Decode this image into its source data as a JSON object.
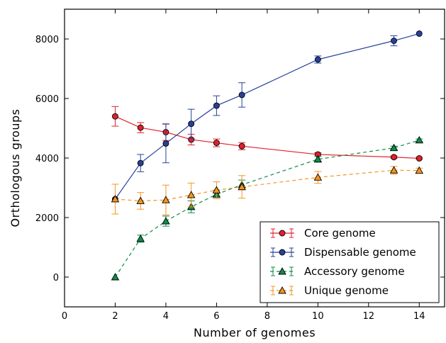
{
  "chart_data": {
    "type": "line",
    "title": "",
    "xlabel": "Number of genomes",
    "ylabel": "Orthologous groups",
    "xlim": [
      0,
      15
    ],
    "ylim": [
      -1000,
      9000
    ],
    "xticks": [
      0,
      2,
      4,
      6,
      8,
      10,
      12,
      14
    ],
    "yticks": [
      0,
      2000,
      4000,
      6000,
      8000
    ],
    "grid": false,
    "legend_position": "bottom-right",
    "series": [
      {
        "name": "Core genome",
        "color": "#e0212b",
        "marker": "circle",
        "line_style": "solid",
        "x": [
          2,
          3,
          4,
          5,
          6,
          7,
          10,
          13,
          14
        ],
        "y": [
          5400,
          5020,
          4870,
          4620,
          4510,
          4400,
          4120,
          4030,
          3990
        ],
        "err": [
          330,
          170,
          280,
          180,
          130,
          120,
          60,
          40,
          30
        ]
      },
      {
        "name": "Dispensable genome",
        "color": "#27419a",
        "marker": "circle",
        "line_style": "solid",
        "x": [
          2,
          3,
          4,
          5,
          6,
          7,
          10,
          13,
          14
        ],
        "y": [
          2620,
          3830,
          4490,
          5150,
          5760,
          6120,
          7310,
          7940,
          8180
        ],
        "err": [
          0,
          290,
          650,
          490,
          330,
          410,
          120,
          170,
          0
        ]
      },
      {
        "name": "Accessory genome",
        "color": "#0f8c4a",
        "marker": "triangle",
        "line_style": "dashed",
        "x": [
          2,
          3,
          4,
          5,
          6,
          7,
          10,
          13,
          14
        ],
        "y": [
          0,
          1290,
          1880,
          2360,
          2780,
          3100,
          3960,
          4340,
          4600
        ],
        "err": [
          0,
          120,
          170,
          200,
          140,
          160,
          100,
          60,
          40
        ]
      },
      {
        "name": "Unique genome",
        "color": "#f7941d",
        "marker": "triangle",
        "line_style": "dashed",
        "x": [
          2,
          3,
          4,
          5,
          6,
          7,
          10,
          13,
          14
        ],
        "y": [
          2620,
          2560,
          2590,
          2760,
          2920,
          3030,
          3350,
          3590,
          3580
        ],
        "err": [
          500,
          280,
          500,
          400,
          280,
          380,
          200,
          130,
          80
        ]
      }
    ]
  }
}
